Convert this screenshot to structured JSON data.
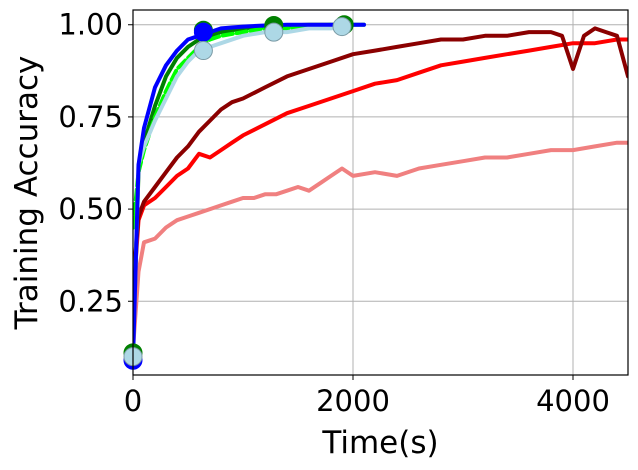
{
  "chart_data": {
    "type": "line",
    "title": "",
    "xlabel": "Time(s)",
    "ylabel": "Training Accuracy",
    "xlim": [
      0,
      4500
    ],
    "ylim": [
      0.05,
      1.04
    ],
    "xticks": [
      0,
      2000,
      4000
    ],
    "yticks": [
      0.25,
      0.5,
      0.75,
      1.0
    ],
    "xtick_labels": [
      "0",
      "2000",
      "4000"
    ],
    "ytick_labels": [
      "0.25",
      "0.50",
      "0.75",
      "1.00"
    ],
    "grid": true,
    "legend": "none",
    "series": [
      {
        "color": "#f08080",
        "x": [
          0,
          50,
          100,
          200,
          300,
          400,
          500,
          600,
          700,
          800,
          900,
          1000,
          1100,
          1200,
          1300,
          1400,
          1500,
          1600,
          1700,
          1800,
          1900,
          2000,
          2200,
          2400,
          2600,
          2800,
          3000,
          3200,
          3400,
          3600,
          3800,
          4000,
          4200,
          4400,
          4500
        ],
        "y": [
          0.12,
          0.33,
          0.41,
          0.42,
          0.45,
          0.47,
          0.48,
          0.49,
          0.5,
          0.51,
          0.52,
          0.53,
          0.53,
          0.54,
          0.54,
          0.55,
          0.56,
          0.55,
          0.57,
          0.59,
          0.61,
          0.59,
          0.6,
          0.59,
          0.61,
          0.62,
          0.63,
          0.64,
          0.64,
          0.65,
          0.66,
          0.66,
          0.67,
          0.68,
          0.68
        ]
      },
      {
        "color": "#ff0000",
        "x": [
          0,
          50,
          100,
          200,
          300,
          400,
          500,
          600,
          700,
          800,
          900,
          1000,
          1200,
          1400,
          1600,
          1800,
          2000,
          2200,
          2400,
          2600,
          2800,
          3000,
          3200,
          3400,
          3600,
          3800,
          4000,
          4200,
          4400,
          4500
        ],
        "y": [
          0.25,
          0.47,
          0.51,
          0.53,
          0.56,
          0.59,
          0.61,
          0.65,
          0.64,
          0.66,
          0.68,
          0.7,
          0.73,
          0.76,
          0.78,
          0.8,
          0.82,
          0.84,
          0.85,
          0.87,
          0.89,
          0.9,
          0.91,
          0.92,
          0.93,
          0.94,
          0.95,
          0.95,
          0.96,
          0.96
        ]
      },
      {
        "color": "#8b0000",
        "x": [
          0,
          50,
          100,
          200,
          300,
          400,
          500,
          600,
          700,
          800,
          900,
          1000,
          1200,
          1400,
          1600,
          1800,
          2000,
          2200,
          2400,
          2600,
          2800,
          3000,
          3200,
          3400,
          3600,
          3800,
          3900,
          4000,
          4100,
          4200,
          4300,
          4400,
          4500
        ],
        "y": [
          0.3,
          0.48,
          0.52,
          0.56,
          0.6,
          0.64,
          0.67,
          0.71,
          0.74,
          0.77,
          0.79,
          0.8,
          0.83,
          0.86,
          0.88,
          0.9,
          0.92,
          0.93,
          0.94,
          0.95,
          0.96,
          0.96,
          0.97,
          0.97,
          0.98,
          0.98,
          0.97,
          0.88,
          0.97,
          0.99,
          0.98,
          0.97,
          0.86
        ]
      },
      {
        "color": "#008000",
        "x": [
          0,
          50,
          100,
          200,
          300,
          400,
          500,
          600,
          700,
          800,
          1000,
          1200,
          1400,
          1600,
          1800,
          2000,
          2100
        ],
        "y": [
          0.11,
          0.6,
          0.68,
          0.78,
          0.86,
          0.91,
          0.94,
          0.96,
          0.97,
          0.98,
          0.99,
          0.995,
          0.998,
          1.0,
          1.0,
          1.0,
          1.0
        ]
      },
      {
        "color": "#00ff00",
        "x": [
          0,
          50,
          100,
          200,
          300,
          400,
          500,
          600,
          700,
          800,
          1000,
          1200,
          1400,
          1600,
          1800,
          2000,
          2100
        ],
        "y": [
          0.45,
          0.6,
          0.66,
          0.75,
          0.82,
          0.88,
          0.91,
          0.94,
          0.96,
          0.97,
          0.98,
          0.99,
          0.99,
          0.995,
          1.0,
          1.0,
          1.0
        ]
      },
      {
        "color": "#add8e6",
        "x": [
          0,
          50,
          100,
          200,
          300,
          400,
          500,
          600,
          700,
          800,
          1000,
          1200,
          1400,
          1600,
          1800,
          2000,
          2100
        ],
        "y": [
          0.1,
          0.62,
          0.67,
          0.74,
          0.8,
          0.86,
          0.9,
          0.93,
          0.94,
          0.95,
          0.97,
          0.98,
          0.98,
          0.99,
          0.99,
          1.0,
          1.0
        ]
      },
      {
        "color": "#0000ff",
        "x": [
          0,
          50,
          100,
          200,
          300,
          400,
          500,
          600,
          700,
          800,
          1000,
          1200,
          1400,
          1600,
          1800,
          2000,
          2100
        ],
        "y": [
          0.09,
          0.62,
          0.72,
          0.83,
          0.89,
          0.93,
          0.96,
          0.97,
          0.98,
          0.99,
          0.995,
          0.998,
          1.0,
          1.0,
          1.0,
          1.0,
          1.0
        ]
      }
    ],
    "markers": [
      {
        "color": "#008000",
        "x": 0,
        "y": 0.11
      },
      {
        "color": "#008000",
        "x": 640,
        "y": 0.985
      },
      {
        "color": "#008000",
        "x": 1280,
        "y": 0.998
      },
      {
        "color": "#008000",
        "x": 1920,
        "y": 1.0
      },
      {
        "color": "#0000ff",
        "x": 0,
        "y": 0.09
      },
      {
        "color": "#0000ff",
        "x": 640,
        "y": 0.98
      },
      {
        "color": "#add8e6",
        "x": 0,
        "y": 0.1
      },
      {
        "color": "#add8e6",
        "x": 640,
        "y": 0.93
      },
      {
        "color": "#add8e6",
        "x": 1280,
        "y": 0.98
      },
      {
        "color": "#add8e6",
        "x": 1900,
        "y": 0.995
      }
    ]
  }
}
